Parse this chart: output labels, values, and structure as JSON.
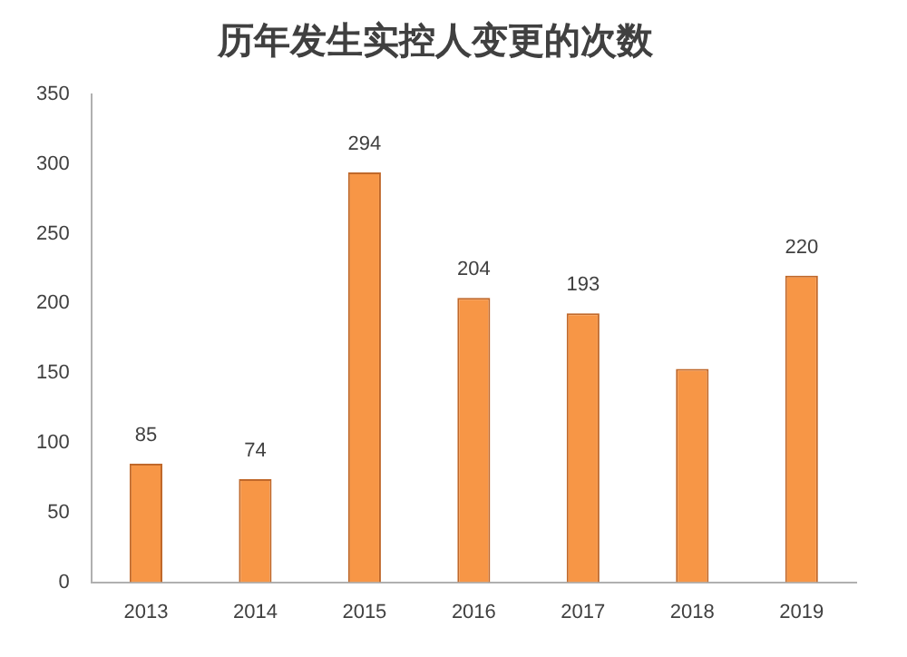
{
  "chart_data": {
    "type": "bar",
    "title": "历年发生实控人变更的次数",
    "categories": [
      "2013",
      "2014",
      "2015",
      "2016",
      "2017",
      "2018",
      "2019"
    ],
    "values": [
      85,
      74,
      294,
      204,
      193,
      153,
      220
    ],
    "value_labels": [
      "85",
      "74",
      "294",
      "204",
      "193",
      null,
      "220"
    ],
    "color": "#f79646",
    "ylim": [
      0,
      350
    ],
    "yticks": [
      0,
      50,
      100,
      150,
      200,
      250,
      300,
      350
    ],
    "grid": false,
    "legend": false
  }
}
